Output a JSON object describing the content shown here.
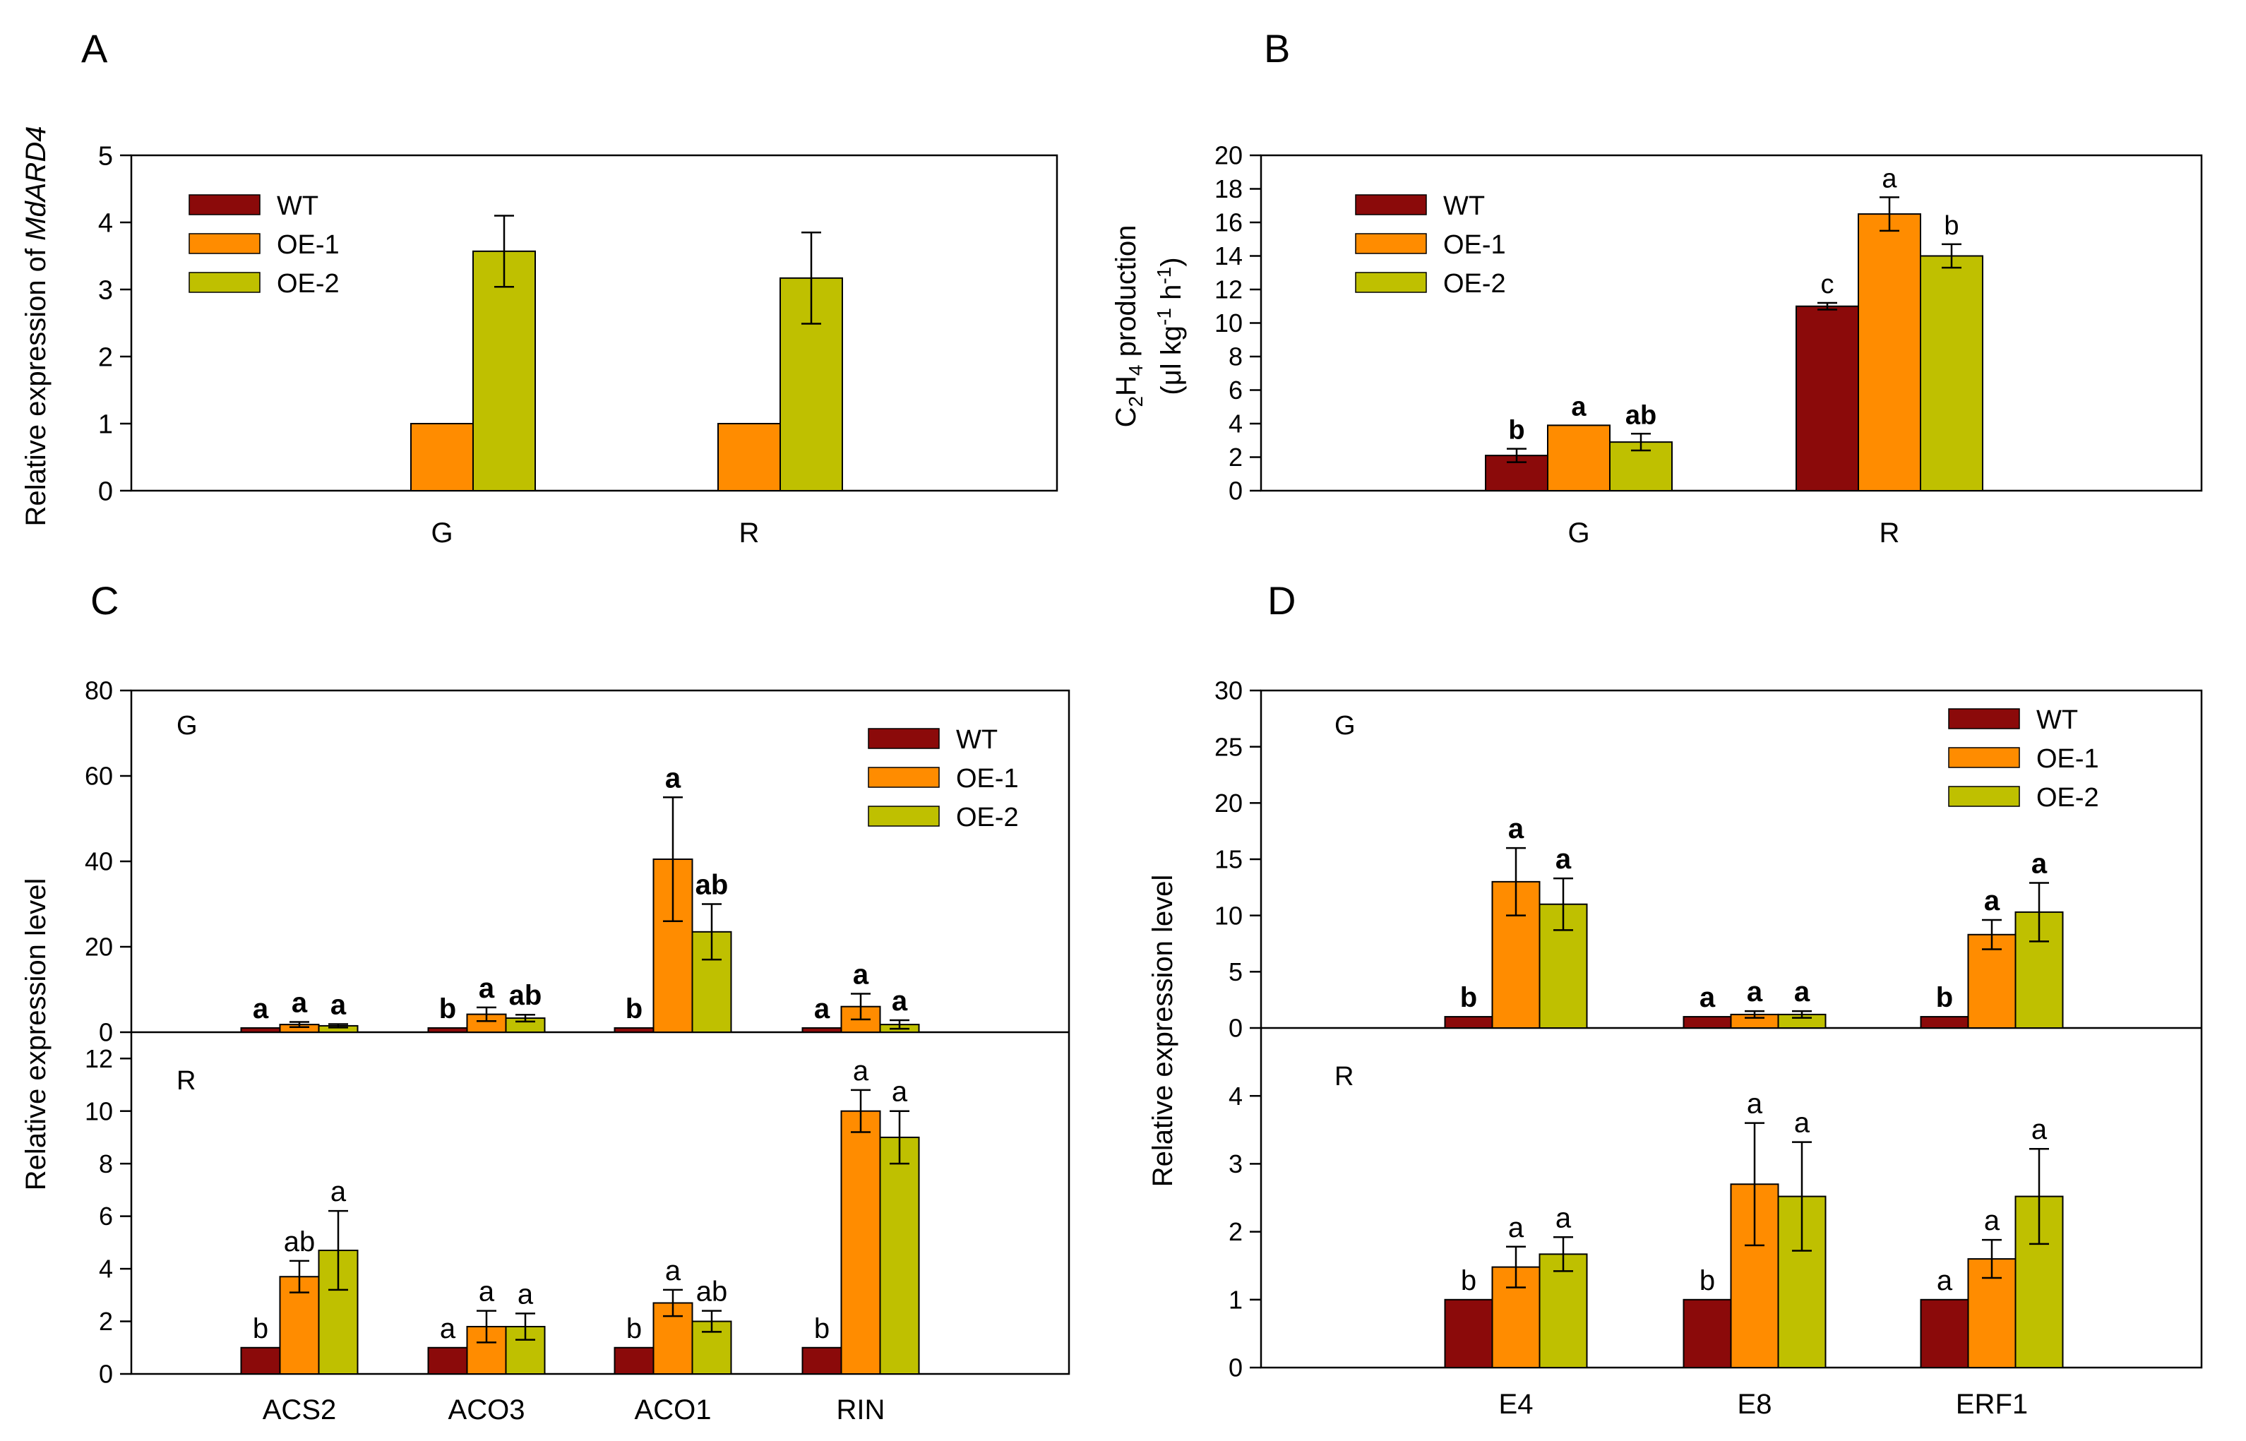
{
  "colors": {
    "WT": "#8B0A0A",
    "OE-1": "#FF8C00",
    "OE-2": "#BFC000"
  },
  "legend": [
    "WT",
    "OE-1",
    "OE-2"
  ],
  "chart_data": [
    {
      "panel": "A",
      "type": "bar",
      "ylabel_plain": "Relative expression of ",
      "ylabel_italic": "MdARD4",
      "ylim": [
        0,
        5
      ],
      "yticks": [
        "0",
        "1",
        "2",
        "3",
        "4",
        "5"
      ],
      "categories": [
        "G",
        "R"
      ],
      "legend_position": "top-left",
      "series": [
        {
          "name": "WT",
          "values": [
            null,
            null
          ],
          "errors": [
            0,
            0
          ],
          "letters": [
            "",
            ""
          ]
        },
        {
          "name": "OE-1",
          "values": [
            1,
            1
          ],
          "errors": [
            0,
            0
          ],
          "letters": [
            "",
            ""
          ]
        },
        {
          "name": "OE-2",
          "values": [
            3.57,
            3.17
          ],
          "errors": [
            0.53,
            0.68
          ],
          "letters": [
            "",
            ""
          ]
        }
      ]
    },
    {
      "panel": "B",
      "type": "bar",
      "ylabel_line1": "C2H4 production",
      "ylabel_line2": "(μl kg-1 h-1)",
      "ylim": [
        0,
        20
      ],
      "yticks": [
        "0",
        "2",
        "4",
        "6",
        "8",
        "10",
        "12",
        "14",
        "16",
        "18",
        "20"
      ],
      "categories": [
        "G",
        "R"
      ],
      "legend_position": "top-left",
      "letters_bold": [
        true,
        false
      ],
      "series": [
        {
          "name": "WT",
          "values": [
            2.1,
            11.0
          ],
          "errors": [
            0.4,
            0.2
          ],
          "letters": [
            "b",
            "c"
          ]
        },
        {
          "name": "OE-1",
          "values": [
            3.9,
            16.5
          ],
          "errors": [
            0,
            1.0
          ],
          "letters": [
            "a",
            "a"
          ]
        },
        {
          "name": "OE-2",
          "values": [
            2.9,
            14.0
          ],
          "errors": [
            0.5,
            0.7
          ],
          "letters": [
            "ab",
            "b"
          ]
        }
      ]
    },
    {
      "panel": "C",
      "type": "bar",
      "ylabel": "Relative expression level",
      "categories": [
        "ACS2",
        "ACO3",
        "ACO1",
        "RIN"
      ],
      "legend_position": "top-right",
      "subpanels": [
        {
          "label": "G",
          "ylim": [
            0,
            80
          ],
          "yticks": [
            "0",
            "20",
            "40",
            "60",
            "80"
          ],
          "letters_bold": true,
          "series": [
            {
              "name": "WT",
              "values": [
                1,
                1,
                1,
                1
              ],
              "errors": [
                0,
                0,
                0,
                0
              ],
              "letters": [
                "a",
                "b",
                "b",
                "a"
              ]
            },
            {
              "name": "OE-1",
              "values": [
                1.8,
                4.2,
                40.5,
                6.0
              ],
              "errors": [
                0.6,
                1.6,
                14.5,
                3.0
              ],
              "letters": [
                "a",
                "a",
                "a",
                "a"
              ]
            },
            {
              "name": "OE-2",
              "values": [
                1.5,
                3.3,
                23.5,
                1.8
              ],
              "errors": [
                0.4,
                0.8,
                6.5,
                1.0
              ],
              "letters": [
                "a",
                "ab",
                "ab",
                "a"
              ]
            }
          ]
        },
        {
          "label": "R",
          "ylim": [
            0,
            13
          ],
          "yticks": [
            "0",
            "2",
            "4",
            "6",
            "8",
            "10",
            "12"
          ],
          "letters_bold": false,
          "series": [
            {
              "name": "WT",
              "values": [
                1,
                1,
                1,
                1
              ],
              "errors": [
                0,
                0,
                0,
                0
              ],
              "letters": [
                "b",
                "a",
                "b",
                "b"
              ]
            },
            {
              "name": "OE-1",
              "values": [
                3.7,
                1.8,
                2.7,
                10.0
              ],
              "errors": [
                0.6,
                0.6,
                0.5,
                0.8
              ],
              "letters": [
                "ab",
                "a",
                "a",
                "a"
              ]
            },
            {
              "name": "OE-2",
              "values": [
                4.7,
                1.8,
                2.0,
                9.0
              ],
              "errors": [
                1.5,
                0.5,
                0.4,
                1.0
              ],
              "letters": [
                "a",
                "a",
                "ab",
                "a"
              ]
            }
          ]
        }
      ]
    },
    {
      "panel": "D",
      "type": "bar",
      "ylabel": "Relative expression level",
      "categories": [
        "E4",
        "E8",
        "ERF1"
      ],
      "legend_position": "top-right",
      "subpanels": [
        {
          "label": "G",
          "ylim": [
            0,
            30
          ],
          "yticks": [
            "0",
            "5",
            "10",
            "15",
            "20",
            "25",
            "30"
          ],
          "letters_bold": true,
          "series": [
            {
              "name": "WT",
              "values": [
                1,
                1,
                1
              ],
              "errors": [
                0,
                0,
                0
              ],
              "letters": [
                "b",
                "a",
                "b"
              ]
            },
            {
              "name": "OE-1",
              "values": [
                13.0,
                1.2,
                8.3
              ],
              "errors": [
                3.0,
                0.3,
                1.3
              ],
              "letters": [
                "a",
                "a",
                "a"
              ]
            },
            {
              "name": "OE-2",
              "values": [
                11.0,
                1.2,
                10.3
              ],
              "errors": [
                2.3,
                0.3,
                2.6
              ],
              "letters": [
                "a",
                "a",
                "a"
              ]
            }
          ]
        },
        {
          "label": "R",
          "ylim": [
            0,
            5
          ],
          "yticks": [
            "0",
            "1",
            "2",
            "3",
            "4"
          ],
          "letters_bold": false,
          "series": [
            {
              "name": "WT",
              "values": [
                1,
                1,
                1
              ],
              "errors": [
                0,
                0,
                0
              ],
              "letters": [
                "b",
                "b",
                "a"
              ]
            },
            {
              "name": "OE-1",
              "values": [
                1.48,
                2.7,
                1.6
              ],
              "errors": [
                0.3,
                0.9,
                0.28
              ],
              "letters": [
                "a",
                "a",
                "a"
              ]
            },
            {
              "name": "OE-2",
              "values": [
                1.67,
                2.52,
                2.52
              ],
              "errors": [
                0.25,
                0.8,
                0.7
              ],
              "letters": [
                "a",
                "a",
                "a"
              ]
            }
          ]
        }
      ]
    }
  ]
}
